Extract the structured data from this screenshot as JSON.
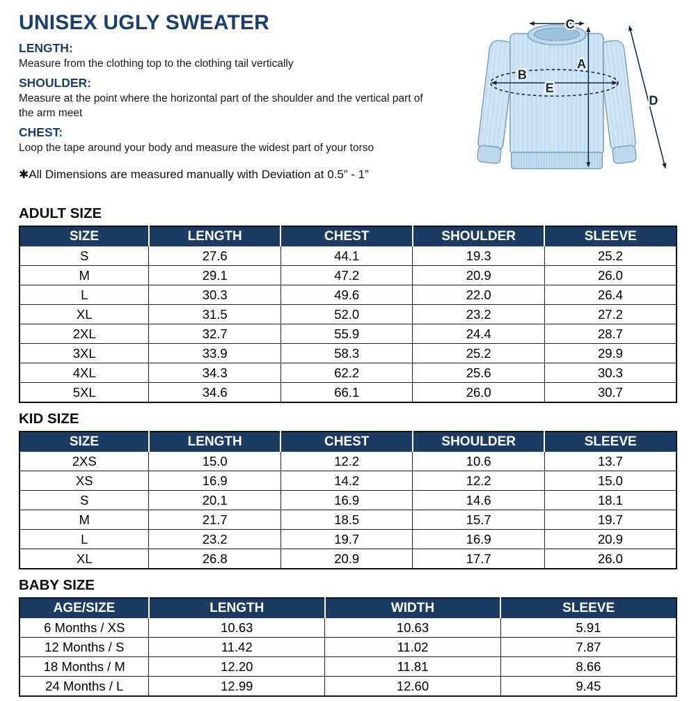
{
  "title": "UNISEX UGLY SWEATER",
  "accent_color": "#1c3e6b",
  "instructions": [
    {
      "heading": "LENGTH:",
      "text": "Measure from the clothing top to the clothing tail vertically"
    },
    {
      "heading": "SHOULDER:",
      "text": "Measure at the point where the horizontal part of the shoulder and the vertical part of the arm meet"
    },
    {
      "heading": "CHEST:",
      "text": "Loop the tape around your body and measure the widest part of your torso"
    }
  ],
  "note": "✱All Dimensions are measured manually with Deviation at 0.5” - 1”",
  "diagram": {
    "labels": [
      "A",
      "B",
      "C",
      "D",
      "E"
    ],
    "sweater_color": "#cfe4f4"
  },
  "tables": [
    {
      "section_title": "ADULT SIZE",
      "headers": [
        "SIZE",
        "LENGTH",
        "CHEST",
        "SHOULDER",
        "SLEEVE"
      ],
      "rows": [
        [
          "S",
          "27.6",
          "44.1",
          "19.3",
          "25.2"
        ],
        [
          "M",
          "29.1",
          "47.2",
          "20.9",
          "26.0"
        ],
        [
          "L",
          "30.3",
          "49.6",
          "22.0",
          "26.4"
        ],
        [
          "XL",
          "31.5",
          "52.0",
          "23.2",
          "27.2"
        ],
        [
          "2XL",
          "32.7",
          "55.9",
          "24.4",
          "28.7"
        ],
        [
          "3XL",
          "33.9",
          "58.3",
          "25.2",
          "29.9"
        ],
        [
          "4XL",
          "34.3",
          "62.2",
          "25.6",
          "30.3"
        ],
        [
          "5XL",
          "34.6",
          "66.1",
          "26.0",
          "30.7"
        ]
      ]
    },
    {
      "section_title": "KID SIZE",
      "headers": [
        "SIZE",
        "LENGTH",
        "CHEST",
        "SHOULDER",
        "SLEEVE"
      ],
      "rows": [
        [
          "2XS",
          "15.0",
          "12.2",
          "10.6",
          "13.7"
        ],
        [
          "XS",
          "16.9",
          "14.2",
          "12.2",
          "15.0"
        ],
        [
          "S",
          "20.1",
          "16.9",
          "14.6",
          "18.1"
        ],
        [
          "M",
          "21.7",
          "18.5",
          "15.7",
          "19.7"
        ],
        [
          "L",
          "23.2",
          "19.7",
          "16.9",
          "20.9"
        ],
        [
          "XL",
          "26.8",
          "20.9",
          "17.7",
          "26.0"
        ]
      ]
    },
    {
      "section_title": "BABY SIZE",
      "headers": [
        "AGE/SIZE",
        "LENGTH",
        "WIDTH",
        "SLEEVE"
      ],
      "rows": [
        [
          "6 Months / XS",
          "10.63",
          "10.63",
          "5.91"
        ],
        [
          "12 Months / S",
          "11.42",
          "11.02",
          "7.87"
        ],
        [
          "18 Months / M",
          "12.20",
          "11.81",
          "8.66"
        ],
        [
          "24 Months / L",
          "12.99",
          "12.60",
          "9.45"
        ]
      ]
    }
  ]
}
